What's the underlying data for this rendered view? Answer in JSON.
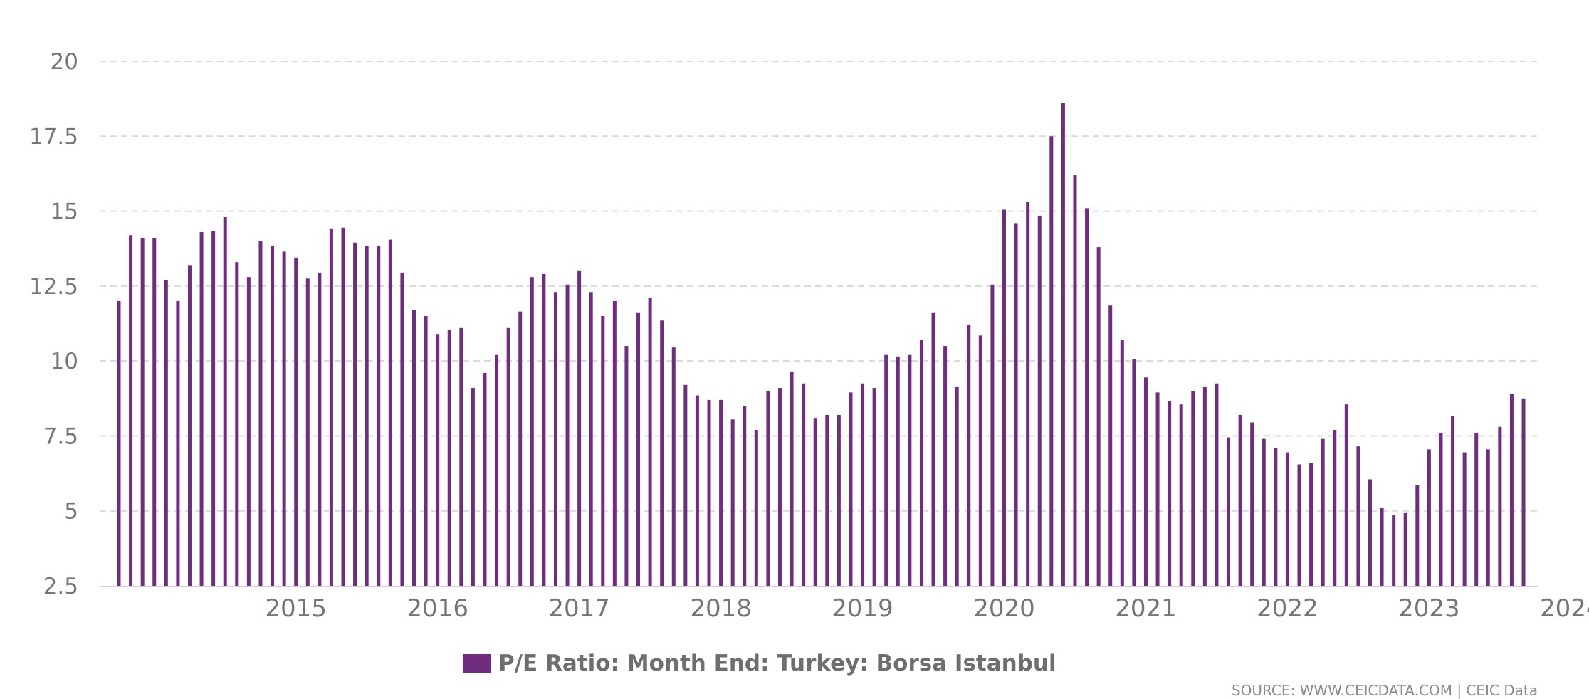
{
  "chart_data": {
    "type": "bar",
    "bar_color": "#6f2c80",
    "grid": true,
    "legend_placement": "bottom",
    "ylim": [
      2.5,
      20
    ],
    "yticks": [
      {
        "value": 2.5,
        "label": "2.5"
      },
      {
        "value": 5,
        "label": "5"
      },
      {
        "value": 7.5,
        "label": "7.5"
      },
      {
        "value": 10,
        "label": "10"
      },
      {
        "value": 12.5,
        "label": "12.5"
      },
      {
        "value": 15,
        "label": "15"
      },
      {
        "value": 17.5,
        "label": "17.5"
      },
      {
        "value": 20,
        "label": "20"
      }
    ],
    "xticks": [
      {
        "year": 2015,
        "label": "2015"
      },
      {
        "year": 2016,
        "label": "2016"
      },
      {
        "year": 2017,
        "label": "2017"
      },
      {
        "year": 2018,
        "label": "2018"
      },
      {
        "year": 2019,
        "label": "2019"
      },
      {
        "year": 2020,
        "label": "2020"
      },
      {
        "year": 2021,
        "label": "2021"
      },
      {
        "year": 2022,
        "label": "2022"
      },
      {
        "year": 2023,
        "label": "2023"
      },
      {
        "year": 2024,
        "label": "2024"
      }
    ],
    "series": [
      {
        "name": "P/E Ratio: Month End: Turkey: Borsa Istanbul",
        "start": "2014-04",
        "frequency": "monthly",
        "values": [
          12.0,
          14.2,
          14.1,
          14.1,
          12.7,
          12.0,
          13.2,
          14.3,
          14.35,
          14.8,
          13.3,
          12.8,
          14.0,
          13.85,
          13.65,
          13.45,
          12.75,
          12.95,
          14.4,
          14.45,
          13.95,
          13.85,
          13.85,
          14.05,
          12.95,
          11.7,
          11.5,
          10.9,
          11.05,
          11.1,
          9.1,
          9.6,
          10.2,
          11.1,
          11.65,
          12.8,
          12.9,
          12.3,
          12.55,
          13.0,
          12.3,
          11.5,
          12.0,
          10.5,
          11.6,
          12.1,
          11.35,
          10.45,
          9.2,
          8.85,
          8.7,
          8.7,
          8.05,
          8.5,
          7.7,
          9.0,
          9.1,
          9.65,
          9.25,
          8.1,
          8.2,
          8.2,
          8.95,
          9.25,
          9.1,
          10.2,
          10.15,
          10.2,
          10.7,
          11.6,
          10.5,
          9.15,
          11.2,
          10.85,
          12.55,
          15.05,
          14.6,
          15.3,
          14.85,
          17.5,
          18.6,
          16.2,
          15.1,
          13.8,
          11.85,
          10.7,
          10.05,
          9.45,
          8.95,
          8.65,
          8.55,
          9.0,
          9.15,
          9.25,
          7.45,
          8.2,
          7.95,
          7.4,
          7.1,
          6.95,
          6.55,
          6.6,
          7.4,
          7.7,
          8.55,
          7.15,
          6.05,
          5.1,
          4.85,
          4.95,
          5.85,
          7.05,
          7.6,
          8.15,
          6.95,
          7.6,
          7.05,
          7.8,
          8.9,
          8.75
        ]
      }
    ],
    "source": "SOURCE: WWW.CEICDATA.COM | CEIC Data"
  }
}
